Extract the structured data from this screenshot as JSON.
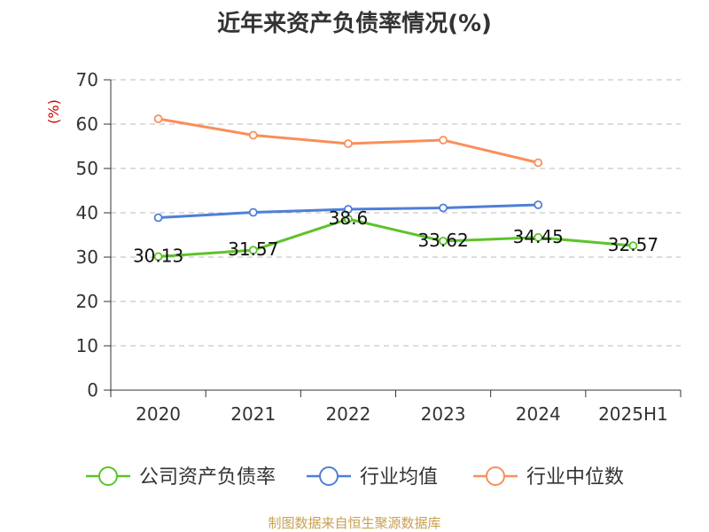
{
  "chart_data": {
    "type": "line",
    "title": "近年来资产负债率情况(%)",
    "ylabel": "(%)",
    "xlabel": "",
    "categories": [
      "2020",
      "2021",
      "2022",
      "2023",
      "2024",
      "2025H1"
    ],
    "ylim": [
      0,
      70
    ],
    "yticks": [
      0,
      10,
      20,
      30,
      40,
      50,
      60,
      70
    ],
    "grid": true,
    "legend_position": "bottom",
    "series": [
      {
        "name": "公司资产负债率",
        "color": "#5dc32a",
        "values": [
          30.13,
          31.57,
          38.6,
          33.62,
          34.45,
          32.57
        ],
        "labels": [
          "30.13",
          "31.57",
          "38.6",
          "33.62",
          "34.45",
          "32.57"
        ]
      },
      {
        "name": "行业均值",
        "color": "#4f7fd6",
        "values": [
          38.9,
          40.1,
          40.8,
          41.1,
          41.8,
          null
        ]
      },
      {
        "name": "行业中位数",
        "color": "#f98f5a",
        "values": [
          61.2,
          57.5,
          55.6,
          56.4,
          51.3,
          null
        ]
      }
    ]
  },
  "source": "制图数据来自恒生聚源数据库"
}
